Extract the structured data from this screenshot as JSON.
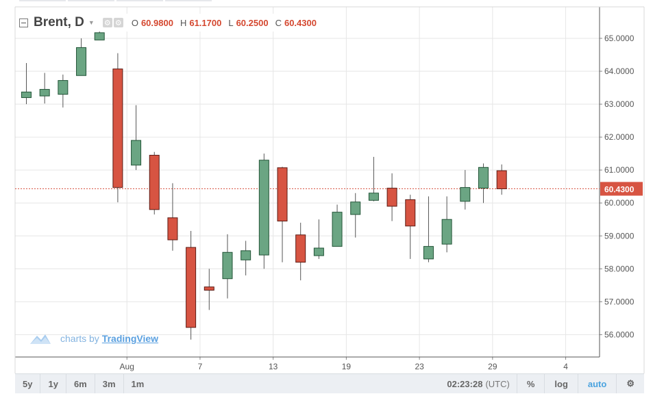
{
  "legend": {
    "symbol": "Brent, D",
    "open_label": "O",
    "open": "60.9800",
    "high_label": "H",
    "high": "61.1700",
    "low_label": "L",
    "low": "60.2500",
    "close_label": "C",
    "close": "60.4300"
  },
  "watermark": {
    "prefix": "charts by",
    "brand": "TradingView"
  },
  "toolbar": {
    "ranges": [
      "5y",
      "1y",
      "6m",
      "3m",
      "1m"
    ],
    "time": "02:23:28",
    "timezone": "(UTC)",
    "percent_label": "%",
    "log_label": "log",
    "auto_label": "auto",
    "settings_icon": "gear-icon"
  },
  "colors": {
    "up": "#6ba583",
    "down": "#d75442",
    "price_line": "#d75442"
  },
  "chart_data": {
    "type": "candlestick",
    "title": "",
    "xlabel": "",
    "ylabel": "",
    "ylim": [
      55.3,
      65.9
    ],
    "yticks": [
      "56.0000",
      "57.0000",
      "58.0000",
      "59.0000",
      "60.0000",
      "61.0000",
      "62.0000",
      "63.0000",
      "64.0000",
      "65.0000"
    ],
    "xticks": [
      {
        "label": "Aug",
        "index": 5.5
      },
      {
        "label": "7",
        "index": 9.5
      },
      {
        "label": "13",
        "index": 13.5
      },
      {
        "label": "19",
        "index": 17.5
      },
      {
        "label": "23",
        "index": 21.5
      },
      {
        "label": "29",
        "index": 25.5
      },
      {
        "label": "4",
        "index": 29.5
      }
    ],
    "last_price": "60.4300",
    "grid": true,
    "candles": [
      {
        "o": 63.2,
        "h": 64.25,
        "l": 63.0,
        "c": 63.37
      },
      {
        "o": 63.25,
        "h": 63.95,
        "l": 63.02,
        "c": 63.45
      },
      {
        "o": 63.3,
        "h": 63.9,
        "l": 62.9,
        "c": 63.72
      },
      {
        "o": 63.87,
        "h": 65.0,
        "l": 63.87,
        "c": 64.72
      },
      {
        "o": 64.95,
        "h": 65.5,
        "l": 64.95,
        "c": 65.17
      },
      {
        "o": 64.07,
        "h": 64.55,
        "l": 60.02,
        "c": 60.47
      },
      {
        "o": 61.15,
        "h": 62.97,
        "l": 61.0,
        "c": 61.9
      },
      {
        "o": 61.45,
        "h": 61.55,
        "l": 59.65,
        "c": 59.8
      },
      {
        "o": 59.55,
        "h": 60.6,
        "l": 58.55,
        "c": 58.88
      },
      {
        "o": 58.65,
        "h": 59.15,
        "l": 55.85,
        "c": 56.22
      },
      {
        "o": 57.45,
        "h": 58.0,
        "l": 56.75,
        "c": 57.35
      },
      {
        "o": 57.7,
        "h": 59.05,
        "l": 57.1,
        "c": 58.5
      },
      {
        "o": 58.27,
        "h": 58.85,
        "l": 57.8,
        "c": 58.55
      },
      {
        "o": 58.42,
        "h": 61.5,
        "l": 58.0,
        "c": 61.3
      },
      {
        "o": 61.07,
        "h": 61.1,
        "l": 58.2,
        "c": 59.45
      },
      {
        "o": 59.03,
        "h": 59.4,
        "l": 57.65,
        "c": 58.2
      },
      {
        "o": 58.4,
        "h": 59.5,
        "l": 58.3,
        "c": 58.63
      },
      {
        "o": 58.68,
        "h": 59.95,
        "l": 58.68,
        "c": 59.72
      },
      {
        "o": 59.65,
        "h": 60.3,
        "l": 58.95,
        "c": 60.03
      },
      {
        "o": 60.08,
        "h": 61.4,
        "l": 60.05,
        "c": 60.3
      },
      {
        "o": 60.45,
        "h": 60.9,
        "l": 59.45,
        "c": 59.9
      },
      {
        "o": 60.1,
        "h": 60.25,
        "l": 58.3,
        "c": 59.3
      },
      {
        "o": 58.3,
        "h": 60.2,
        "l": 58.2,
        "c": 58.68
      },
      {
        "o": 58.75,
        "h": 60.2,
        "l": 58.5,
        "c": 59.5
      },
      {
        "o": 60.05,
        "h": 61.0,
        "l": 59.8,
        "c": 60.47
      },
      {
        "o": 60.45,
        "h": 61.2,
        "l": 60.0,
        "c": 61.08
      },
      {
        "o": 60.98,
        "h": 61.17,
        "l": 60.25,
        "c": 60.43
      }
    ]
  }
}
